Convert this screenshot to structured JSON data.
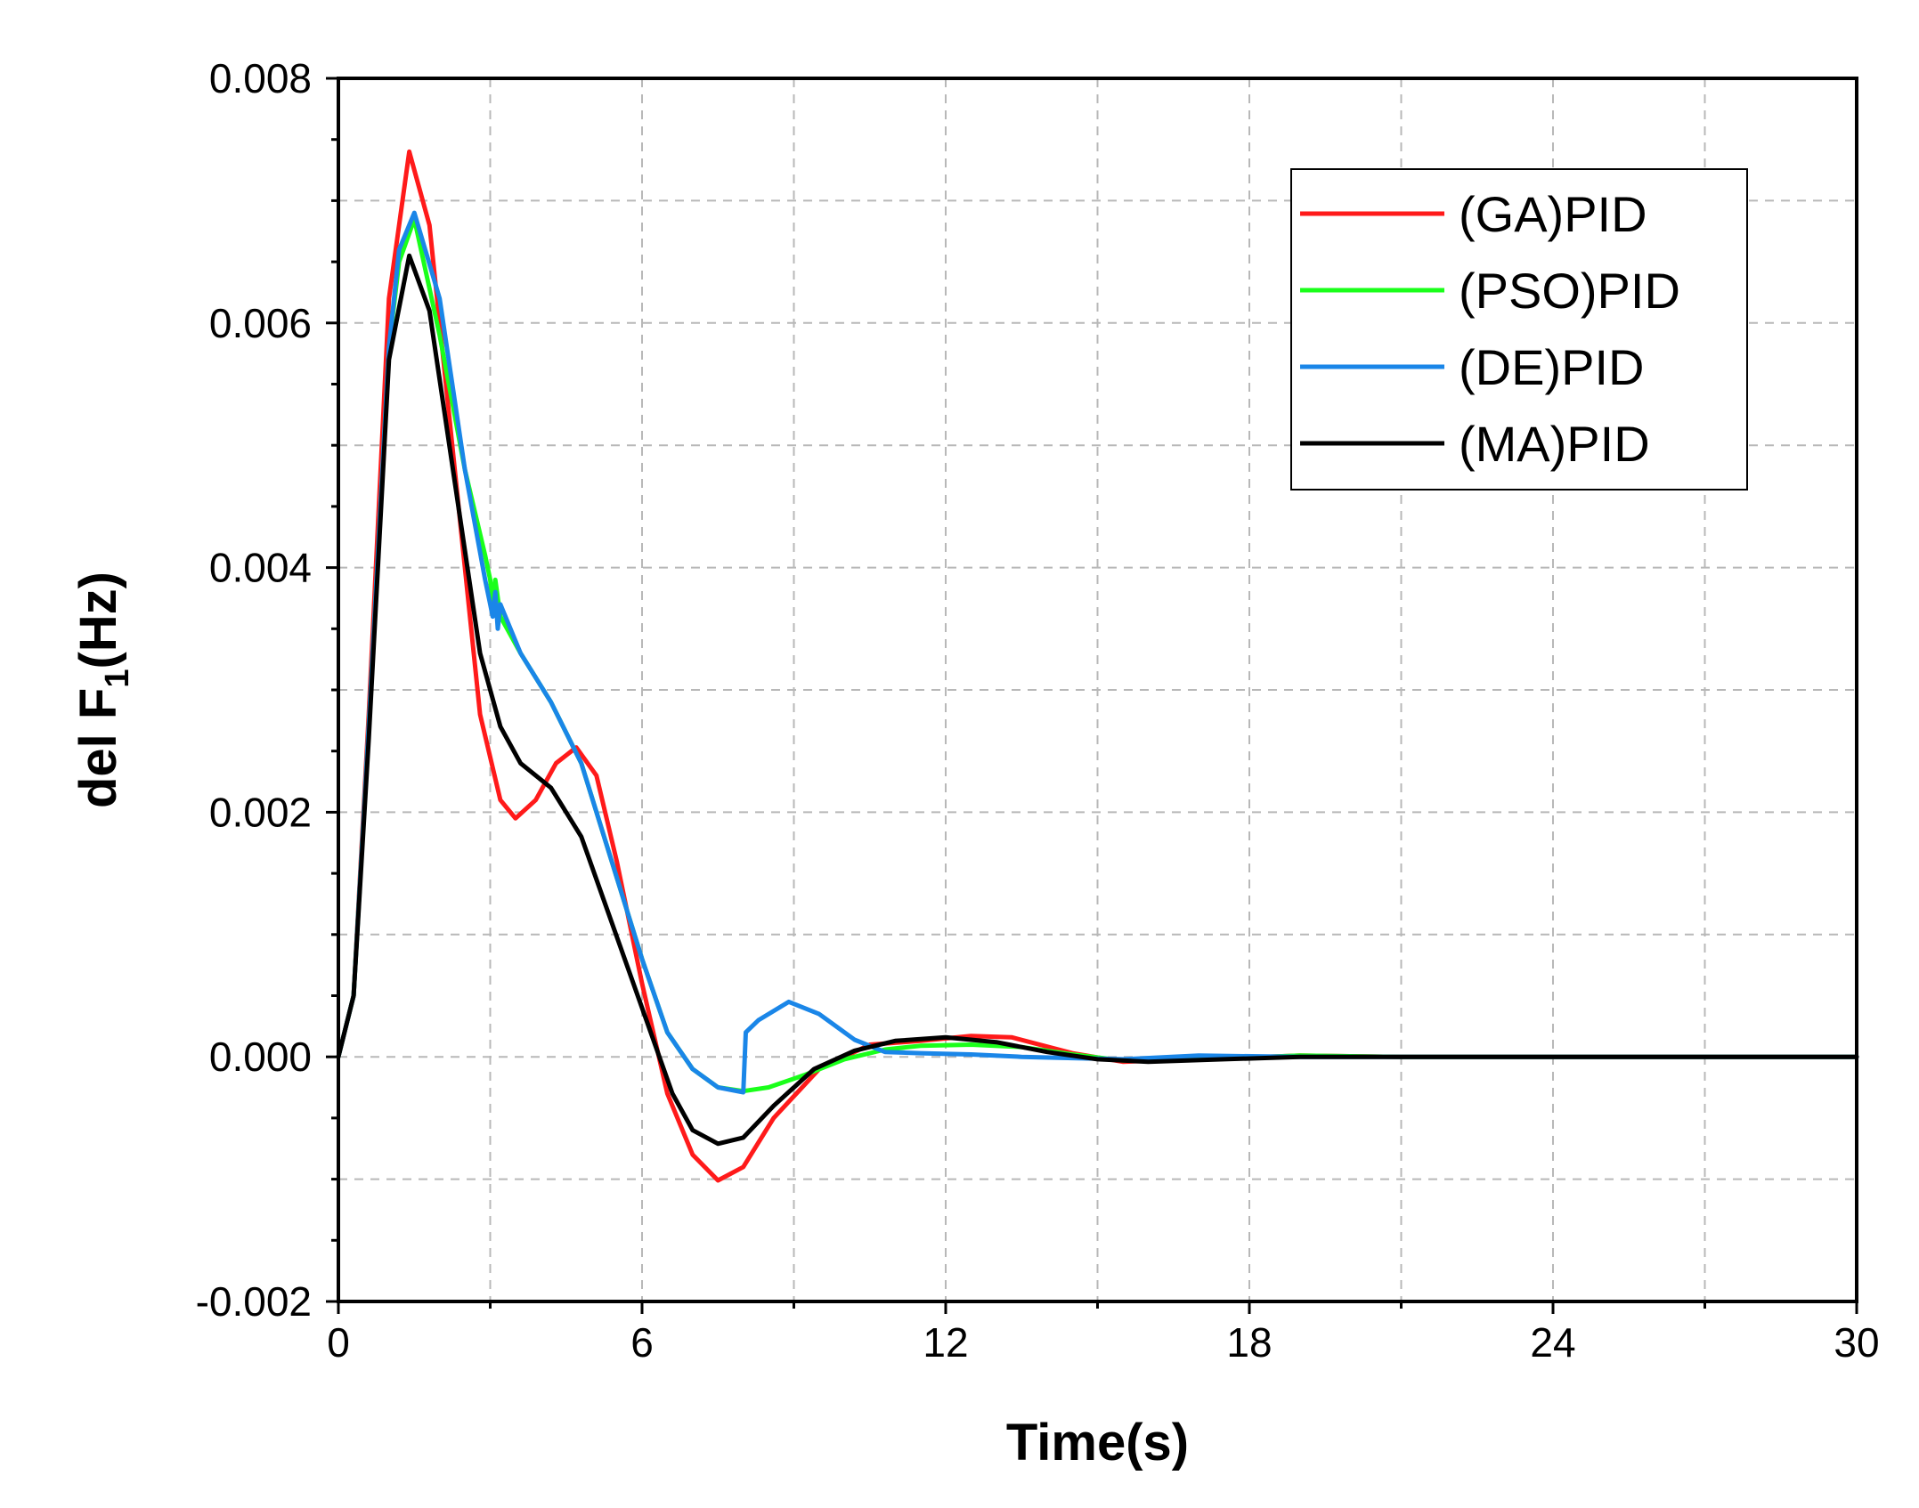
{
  "chart_data": {
    "type": "line",
    "title": "",
    "xlabel": "Time(s)",
    "ylabel_main": "del F",
    "ylabel_sub": "1",
    "ylabel_unit": "(Hz)",
    "xlim": [
      0,
      30
    ],
    "ylim": [
      -0.002,
      0.008
    ],
    "x_ticks": [
      0,
      6,
      12,
      18,
      24,
      30
    ],
    "x_tick_labels": [
      "0",
      "6",
      "12",
      "18",
      "24",
      "30"
    ],
    "y_ticks": [
      -0.002,
      0.0,
      0.002,
      0.004,
      0.006,
      0.008
    ],
    "y_tick_labels": [
      "-0.002",
      "0.000",
      "0.002",
      "0.004",
      "0.006",
      "0.008"
    ],
    "grid": true,
    "legend_position": "top-right",
    "series": [
      {
        "name": "(GA)PID",
        "color": "#ff1a1a",
        "points": [
          [
            0,
            0
          ],
          [
            0.3,
            0.0005
          ],
          [
            0.6,
            0.0028
          ],
          [
            1.0,
            0.0062
          ],
          [
            1.4,
            0.0074
          ],
          [
            1.8,
            0.0068
          ],
          [
            2.3,
            0.0048
          ],
          [
            2.8,
            0.0028
          ],
          [
            3.2,
            0.0021
          ],
          [
            3.5,
            0.00195
          ],
          [
            3.9,
            0.0021
          ],
          [
            4.3,
            0.0024
          ],
          [
            4.7,
            0.00253
          ],
          [
            5.1,
            0.0023
          ],
          [
            5.5,
            0.0016
          ],
          [
            6.0,
            0.0006
          ],
          [
            6.5,
            -0.0003
          ],
          [
            7.0,
            -0.0008
          ],
          [
            7.5,
            -0.00101
          ],
          [
            8.0,
            -0.0009
          ],
          [
            8.6,
            -0.0005
          ],
          [
            9.5,
            -0.0001
          ],
          [
            10.5,
            0.0001
          ],
          [
            11.5,
            0.00013
          ],
          [
            12.5,
            0.00017
          ],
          [
            13.3,
            0.00016
          ],
          [
            14.5,
            3e-05
          ],
          [
            15.5,
            -4e-05
          ],
          [
            17,
            -2e-05
          ],
          [
            19,
            1e-05
          ],
          [
            21,
            0.0
          ],
          [
            30,
            0.0
          ]
        ]
      },
      {
        "name": "(PSO)PID",
        "color": "#1aff1a",
        "points": [
          [
            0,
            0
          ],
          [
            0.3,
            0.0005
          ],
          [
            0.6,
            0.0027
          ],
          [
            1.0,
            0.0058
          ],
          [
            1.2,
            0.0065
          ],
          [
            1.5,
            0.00685
          ],
          [
            2.0,
            0.0059
          ],
          [
            2.5,
            0.0048
          ],
          [
            2.9,
            0.0041
          ],
          [
            3.0,
            0.0039
          ],
          [
            3.05,
            0.0037
          ],
          [
            3.1,
            0.0039
          ],
          [
            3.2,
            0.0036
          ],
          [
            3.6,
            0.0033
          ],
          [
            4.2,
            0.0029
          ],
          [
            4.8,
            0.0024
          ],
          [
            5.4,
            0.0016
          ],
          [
            6.0,
            0.0008
          ],
          [
            6.5,
            0.0002
          ],
          [
            7.0,
            -0.0001
          ],
          [
            7.5,
            -0.00025
          ],
          [
            8.0,
            -0.00028
          ],
          [
            8.5,
            -0.00025
          ],
          [
            9.2,
            -0.00015
          ],
          [
            10.0,
            -2e-05
          ],
          [
            10.8,
            6e-05
          ],
          [
            11.5,
            9e-05
          ],
          [
            12.5,
            0.0001
          ],
          [
            13.5,
            8e-05
          ],
          [
            14.5,
            2e-05
          ],
          [
            15.5,
            -3e-05
          ],
          [
            17,
            -2e-05
          ],
          [
            19,
            1e-05
          ],
          [
            21,
            0.0
          ],
          [
            30,
            0.0
          ]
        ]
      },
      {
        "name": "(DE)PID",
        "color": "#1a86e8",
        "points": [
          [
            0,
            0
          ],
          [
            0.3,
            0.0005
          ],
          [
            0.6,
            0.0027
          ],
          [
            1.0,
            0.0058
          ],
          [
            1.2,
            0.0066
          ],
          [
            1.5,
            0.0069
          ],
          [
            2.0,
            0.0062
          ],
          [
            2.5,
            0.0048
          ],
          [
            2.9,
            0.0039
          ],
          [
            3.0,
            0.0037
          ],
          [
            3.05,
            0.0036
          ],
          [
            3.1,
            0.0038
          ],
          [
            3.15,
            0.0035
          ],
          [
            3.2,
            0.0037
          ],
          [
            3.6,
            0.0033
          ],
          [
            4.2,
            0.0029
          ],
          [
            4.8,
            0.0024
          ],
          [
            5.4,
            0.0016
          ],
          [
            6.0,
            0.0008
          ],
          [
            6.5,
            0.0002
          ],
          [
            7.0,
            -0.0001
          ],
          [
            7.5,
            -0.00025
          ],
          [
            8.0,
            -0.00029
          ],
          [
            8.05,
            0.0002
          ],
          [
            8.3,
            0.0003
          ],
          [
            8.9,
            0.00045
          ],
          [
            9.5,
            0.00035
          ],
          [
            10.2,
            0.00014
          ],
          [
            10.8,
            4e-05
          ],
          [
            11.5,
            3e-05
          ],
          [
            12.5,
            2e-05
          ],
          [
            13.5,
            0.0
          ],
          [
            14.5,
            -1e-05
          ],
          [
            15.5,
            -2e-05
          ],
          [
            17,
            1e-05
          ],
          [
            19,
            0.0
          ],
          [
            21,
            0.0
          ],
          [
            30,
            0.0
          ]
        ]
      },
      {
        "name": "(MA)PID",
        "color": "#000000",
        "points": [
          [
            0,
            0
          ],
          [
            0.3,
            0.0005
          ],
          [
            0.6,
            0.0026
          ],
          [
            1.0,
            0.0057
          ],
          [
            1.4,
            0.00655
          ],
          [
            1.8,
            0.0061
          ],
          [
            2.3,
            0.0047
          ],
          [
            2.8,
            0.0033
          ],
          [
            3.2,
            0.0027
          ],
          [
            3.6,
            0.0024
          ],
          [
            4.2,
            0.0022
          ],
          [
            4.8,
            0.0018
          ],
          [
            5.4,
            0.0011
          ],
          [
            6.0,
            0.0004
          ],
          [
            6.6,
            -0.0003
          ],
          [
            7.0,
            -0.0006
          ],
          [
            7.5,
            -0.00071
          ],
          [
            8.0,
            -0.00066
          ],
          [
            8.6,
            -0.0004
          ],
          [
            9.4,
            -0.0001
          ],
          [
            10.2,
            5e-05
          ],
          [
            11.0,
            0.00013
          ],
          [
            12.0,
            0.00016
          ],
          [
            13.0,
            0.00012
          ],
          [
            14.0,
            4e-05
          ],
          [
            15.0,
            -2e-05
          ],
          [
            16,
            -4e-05
          ],
          [
            17.5,
            -2e-05
          ],
          [
            19,
            0.0
          ],
          [
            21,
            0.0
          ],
          [
            30,
            0.0
          ]
        ]
      }
    ]
  }
}
